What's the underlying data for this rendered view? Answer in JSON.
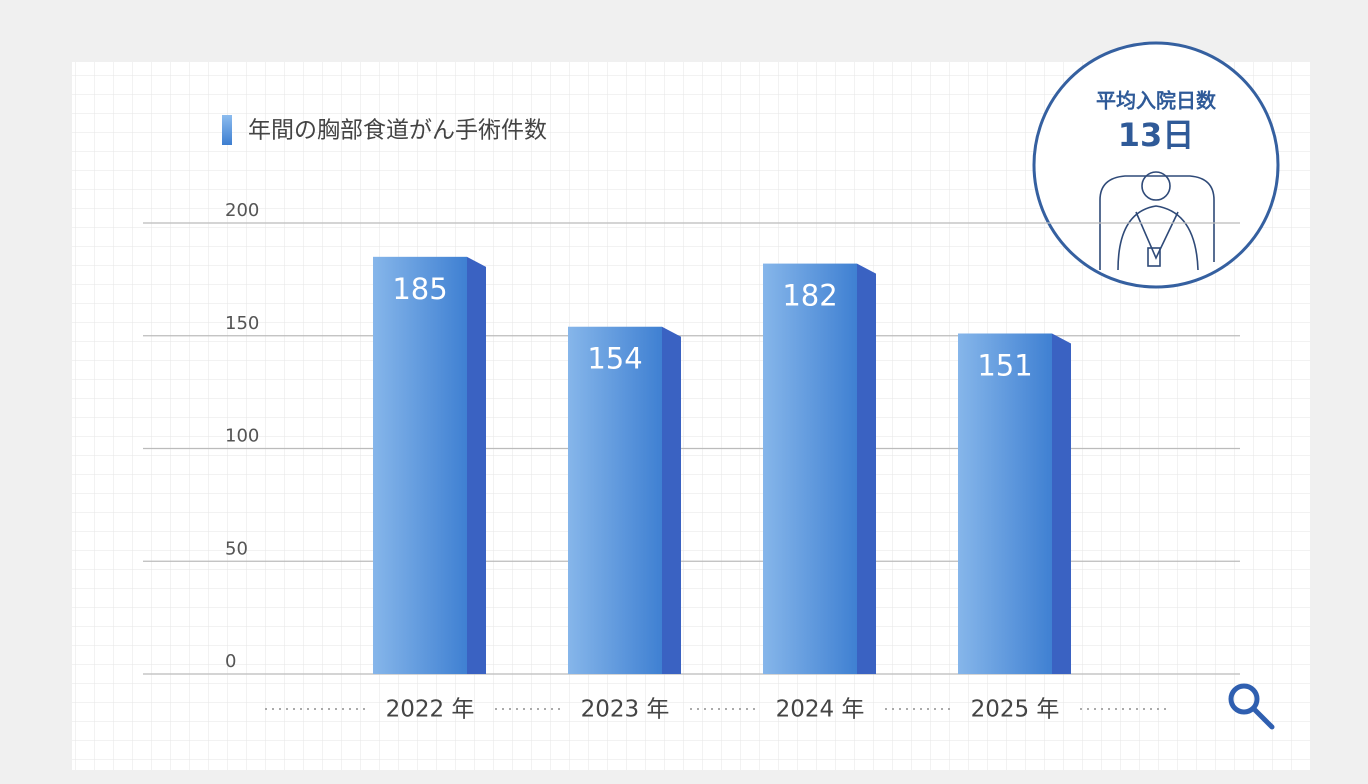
{
  "chart_data": {
    "type": "bar",
    "title": "年間の胸部食道がん手術件数",
    "categories": [
      "2022 年",
      "2023 年",
      "2024 年",
      "2025 年"
    ],
    "values": [
      185,
      154,
      182,
      151
    ],
    "color": "#4a86d6",
    "ylim": [
      0,
      200
    ],
    "yticks": [
      0,
      50,
      100,
      150,
      200
    ],
    "grid": true
  },
  "badge": {
    "label": "平均入院日数",
    "value": "13日"
  }
}
